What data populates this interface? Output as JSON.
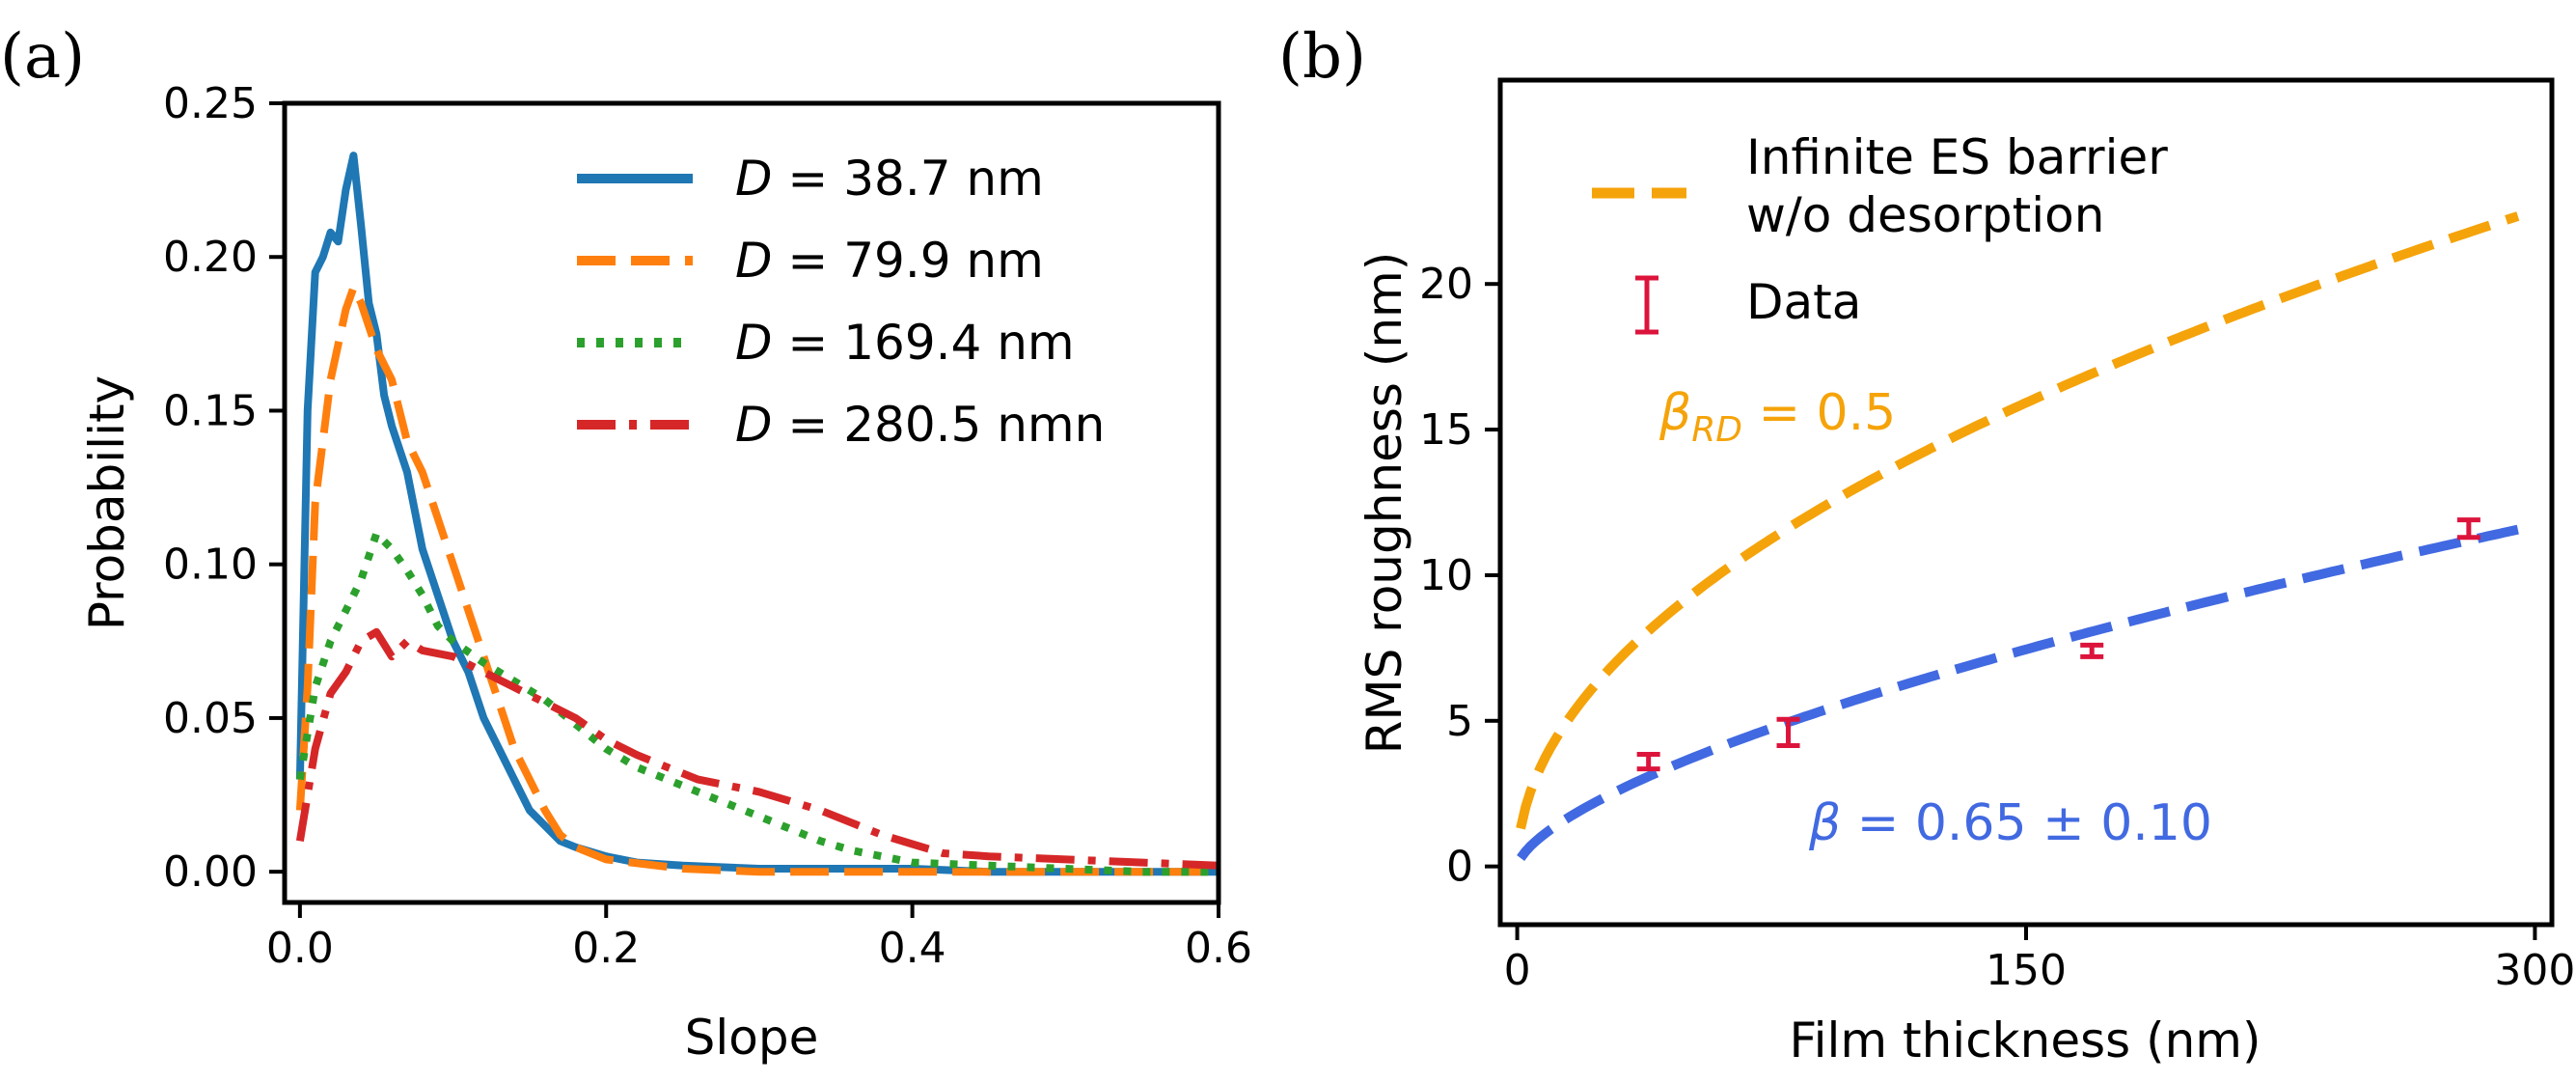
{
  "chart_data": [
    {
      "panel": "(a)",
      "type": "line",
      "xlabel": "Slope",
      "ylabel": "Probability",
      "xlim": [
        -0.01,
        0.6
      ],
      "ylim": [
        -0.01,
        0.25
      ],
      "xticks": [
        0.0,
        0.2,
        0.4,
        0.6
      ],
      "xtick_labels": [
        "0.0",
        "0.2",
        "0.4",
        "0.6"
      ],
      "yticks": [
        0.0,
        0.05,
        0.1,
        0.15,
        0.2,
        0.25
      ],
      "ytick_labels": [
        "0.00",
        "0.05",
        "0.10",
        "0.15",
        "0.20",
        "0.25"
      ],
      "legend_position": "top-right",
      "series": [
        {
          "name": "D = 38.7 nm",
          "legend_italic": "D",
          "legend_rest": " = 38.7 nm",
          "color": "#1f77b4",
          "dash": "solid",
          "x": [
            0.0,
            0.005,
            0.01,
            0.015,
            0.02,
            0.025,
            0.03,
            0.035,
            0.04,
            0.045,
            0.05,
            0.055,
            0.06,
            0.07,
            0.08,
            0.09,
            0.1,
            0.11,
            0.12,
            0.13,
            0.14,
            0.15,
            0.16,
            0.17,
            0.18,
            0.2,
            0.22,
            0.25,
            0.3,
            0.35,
            0.4,
            0.45,
            0.5,
            0.55,
            0.6
          ],
          "y": [
            0.03,
            0.15,
            0.195,
            0.2,
            0.208,
            0.205,
            0.222,
            0.233,
            0.21,
            0.185,
            0.175,
            0.155,
            0.145,
            0.13,
            0.105,
            0.09,
            0.075,
            0.065,
            0.05,
            0.04,
            0.03,
            0.02,
            0.015,
            0.01,
            0.008,
            0.005,
            0.003,
            0.002,
            0.001,
            0.001,
            0.001,
            0.0,
            0.0,
            0.0,
            0.0
          ]
        },
        {
          "name": "D = 79.9 nm",
          "legend_italic": "D",
          "legend_rest": " = 79.9 nm",
          "color": "#ff7f0e",
          "dash": "dashed",
          "x": [
            0.0,
            0.005,
            0.01,
            0.02,
            0.03,
            0.035,
            0.04,
            0.05,
            0.06,
            0.07,
            0.08,
            0.09,
            0.1,
            0.11,
            0.12,
            0.13,
            0.14,
            0.15,
            0.16,
            0.17,
            0.18,
            0.2,
            0.25,
            0.3,
            0.35,
            0.4,
            0.45,
            0.5,
            0.55,
            0.6
          ],
          "y": [
            0.02,
            0.06,
            0.12,
            0.16,
            0.183,
            0.19,
            0.185,
            0.17,
            0.16,
            0.14,
            0.13,
            0.115,
            0.1,
            0.085,
            0.07,
            0.055,
            0.04,
            0.03,
            0.02,
            0.012,
            0.008,
            0.004,
            0.001,
            0.0,
            0.0,
            0.0,
            0.0,
            0.0,
            0.0,
            0.0
          ]
        },
        {
          "name": "D = 169.4 nm",
          "legend_italic": "D",
          "legend_rest": " = 169.4 nm",
          "color": "#2ca02c",
          "dash": "dotted",
          "x": [
            0.0,
            0.005,
            0.01,
            0.02,
            0.03,
            0.04,
            0.05,
            0.06,
            0.07,
            0.08,
            0.09,
            0.1,
            0.12,
            0.14,
            0.16,
            0.18,
            0.2,
            0.22,
            0.24,
            0.26,
            0.28,
            0.3,
            0.32,
            0.34,
            0.36,
            0.38,
            0.4,
            0.45,
            0.5,
            0.55,
            0.6
          ],
          "y": [
            0.03,
            0.045,
            0.06,
            0.075,
            0.085,
            0.095,
            0.11,
            0.105,
            0.098,
            0.09,
            0.08,
            0.075,
            0.068,
            0.062,
            0.056,
            0.048,
            0.04,
            0.034,
            0.03,
            0.026,
            0.022,
            0.018,
            0.014,
            0.01,
            0.007,
            0.005,
            0.003,
            0.002,
            0.001,
            0.0,
            0.0
          ]
        },
        {
          "name": "D = 280.5 nmn",
          "legend_italic": "D",
          "legend_rest": " = 280.5 nmn",
          "color": "#d62728",
          "dash": "dashdot",
          "x": [
            0.0,
            0.005,
            0.01,
            0.02,
            0.03,
            0.04,
            0.05,
            0.06,
            0.07,
            0.08,
            0.1,
            0.12,
            0.14,
            0.16,
            0.18,
            0.2,
            0.22,
            0.24,
            0.26,
            0.28,
            0.3,
            0.32,
            0.34,
            0.36,
            0.38,
            0.4,
            0.42,
            0.45,
            0.5,
            0.55,
            0.6
          ],
          "y": [
            0.01,
            0.025,
            0.04,
            0.058,
            0.065,
            0.075,
            0.078,
            0.07,
            0.075,
            0.072,
            0.07,
            0.065,
            0.06,
            0.055,
            0.05,
            0.043,
            0.038,
            0.034,
            0.03,
            0.028,
            0.026,
            0.023,
            0.02,
            0.016,
            0.012,
            0.009,
            0.006,
            0.005,
            0.004,
            0.003,
            0.002
          ]
        }
      ]
    },
    {
      "panel": "(b)",
      "type": "line+errorbar",
      "xlabel": "Film thickness (nm)",
      "ylabel": "RMS roughness (nm)",
      "xlim": [
        -5,
        305
      ],
      "ylim": [
        -2,
        27
      ],
      "xticks": [
        0,
        150,
        300
      ],
      "xtick_labels": [
        "0",
        "150",
        "300"
      ],
      "yticks": [
        0,
        5,
        10,
        15,
        20
      ],
      "ytick_labels": [
        "0",
        "5",
        "10",
        "15",
        "20"
      ],
      "legend_position": "top-left",
      "legend": {
        "line_label_line1": "Infinite ES barrier",
        "line_label_line2": "w/o desorption",
        "data_label": "Data"
      },
      "curves": [
        {
          "name": "Infinite ES barrier w/o desorption",
          "color": "#f5a30a",
          "dash": "dashed",
          "formula": "a*x^beta",
          "a": 1.3,
          "beta": 0.5,
          "x_range": [
            1,
            295
          ]
        },
        {
          "name": "fit",
          "color": "#4169e1",
          "dash": "dashed",
          "formula": "a*x^beta",
          "a": 0.287,
          "beta": 0.65,
          "x_range": [
            1,
            295
          ]
        }
      ],
      "data": {
        "name": "Data",
        "color": "#dc143c",
        "x": [
          38.7,
          79.9,
          169.4,
          280.5
        ],
        "y": [
          3.6,
          4.6,
          7.4,
          11.6
        ],
        "err": [
          0.25,
          0.45,
          0.2,
          0.3
        ]
      },
      "annotations": [
        {
          "symbol": "β",
          "sub": "RD",
          "text": " = 0.5",
          "color": "#f5a30a"
        },
        {
          "symbol": "β",
          "sub": "",
          "text": " = 0.65 ± 0.10",
          "color": "#4169e1"
        }
      ]
    }
  ]
}
